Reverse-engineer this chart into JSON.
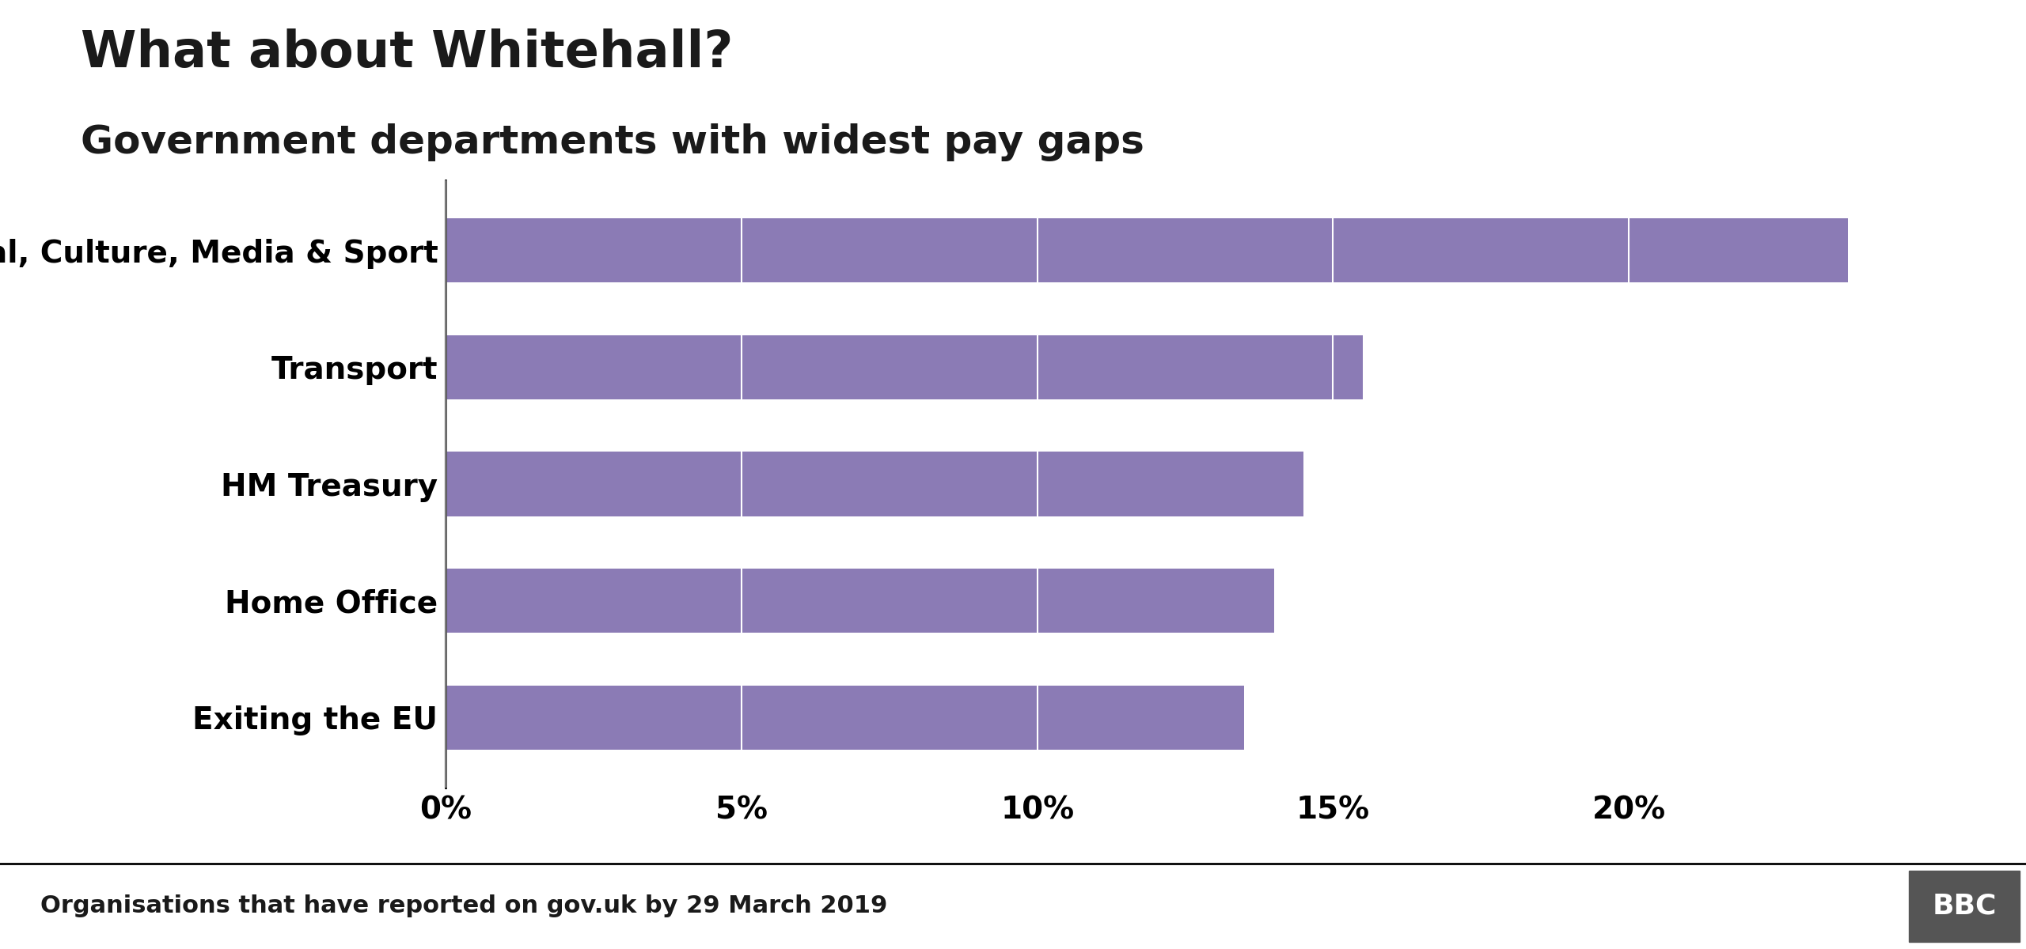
{
  "title": "What about Whitehall?",
  "subtitle": "Government departments with widest pay gaps",
  "categories": [
    "Digital, Culture, Media & Sport",
    "Transport",
    "HM Treasury",
    "Home Office",
    "Exiting the EU"
  ],
  "values": [
    23.7,
    15.5,
    14.5,
    14.0,
    13.5
  ],
  "bar_color": "#8B7BB5",
  "xlim": [
    0,
    25
  ],
  "xticks": [
    0,
    5,
    10,
    15,
    20
  ],
  "xticklabels": [
    "0%",
    "5%",
    "10%",
    "15%",
    "20%"
  ],
  "footer_text": "Organisations that have reported on gov.uk by 29 March 2019",
  "bbc_label": "BBC",
  "background_color": "#ffffff",
  "title_fontsize": 46,
  "subtitle_fontsize": 36,
  "bar_label_fontsize": 28,
  "tick_fontsize": 28,
  "footer_fontsize": 22
}
